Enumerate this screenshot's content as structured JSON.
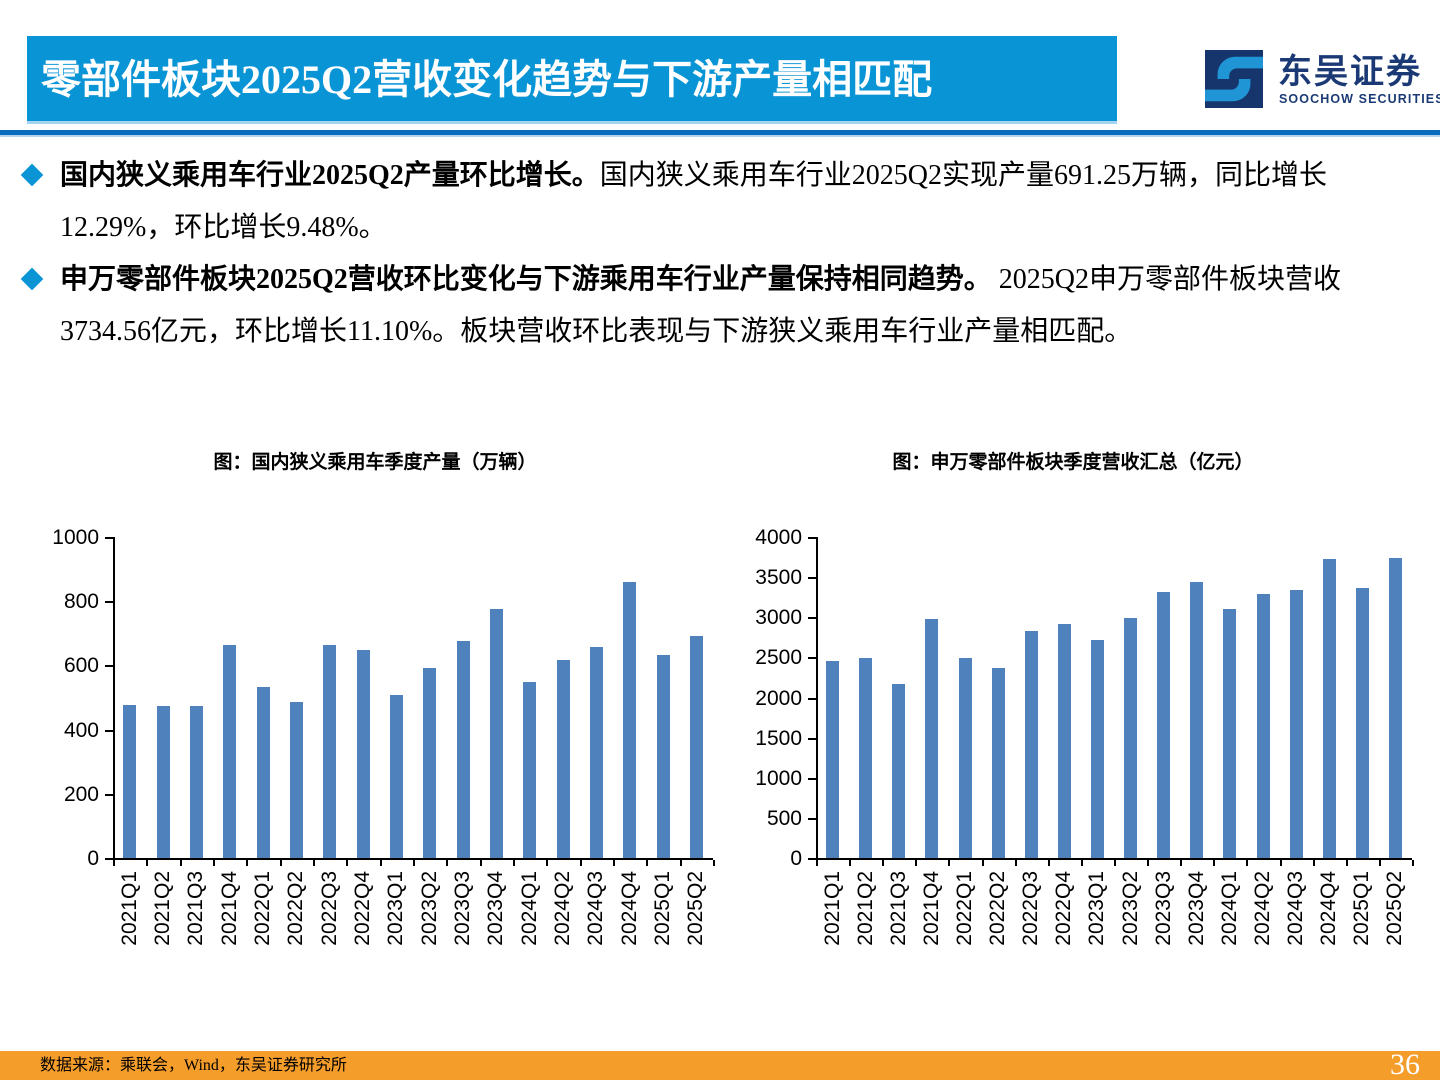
{
  "header": {
    "title": "零部件板块2025Q2营收变化趋势与下游产量相匹配",
    "brand": {
      "cn": "东吴证券",
      "en": "SOOCHOW SECURITIES"
    }
  },
  "bullets": [
    {
      "lead": "国内狭义乘用车行业2025Q2产量环比增长。",
      "body": "国内狭义乘用车行业2025Q2实现产量691.25万辆，同比增长12.29%，环比增长9.48%。"
    },
    {
      "lead": "申万零部件板块2025Q2营收环比变化与下游乘用车行业产量保持相同趋势。",
      "body": " 2025Q2申万零部件板块营收3734.56亿元，环比增长11.10%。板块营收环比表现与下游狭义乘用车行业产量相匹配。"
    }
  ],
  "chart_data": [
    {
      "type": "bar",
      "title": "图：国内狭义乘用车季度产量（万辆）",
      "categories": [
        "2021Q1",
        "2021Q2",
        "2021Q3",
        "2021Q4",
        "2022Q1",
        "2022Q2",
        "2022Q3",
        "2022Q4",
        "2023Q1",
        "2023Q2",
        "2023Q3",
        "2023Q4",
        "2024Q1",
        "2024Q2",
        "2024Q3",
        "2024Q4",
        "2025Q1",
        "2025Q2"
      ],
      "values": [
        478,
        472,
        472,
        665,
        534,
        486,
        664,
        649,
        508,
        591,
        677,
        777,
        549,
        616,
        656,
        860,
        631,
        691
      ],
      "xlabel": "",
      "ylabel": "",
      "ylim": [
        0,
        1000
      ],
      "ytick_step": 200,
      "grid": false,
      "legend": "none",
      "bar_color": "#4f81bd"
    },
    {
      "type": "bar",
      "title": "图：申万零部件板块季度营收汇总（亿元）",
      "categories": [
        "2021Q1",
        "2021Q2",
        "2021Q3",
        "2021Q4",
        "2022Q1",
        "2022Q2",
        "2022Q3",
        "2022Q4",
        "2023Q1",
        "2023Q2",
        "2023Q3",
        "2023Q4",
        "2024Q1",
        "2024Q2",
        "2024Q3",
        "2024Q4",
        "2025Q1",
        "2025Q2"
      ],
      "values": [
        2453,
        2496,
        2164,
        2980,
        2489,
        2372,
        2823,
        2916,
        2717,
        2996,
        3318,
        3442,
        3103,
        3290,
        3341,
        3728,
        3361,
        3735
      ],
      "xlabel": "",
      "ylabel": "",
      "ylim": [
        0,
        4000
      ],
      "ytick_step": 500,
      "grid": false,
      "legend": "none",
      "bar_color": "#4f81bd"
    }
  ],
  "footer": {
    "source": "数据来源：乘联会，Wind，东吴证券研究所",
    "page": "36"
  },
  "colors": {
    "banner_blue": "#0994d6",
    "divider_blue": "#0b6cbe",
    "divider_light": "#b7d3eb",
    "bullet_diamond": "#0994d6",
    "bar_blue": "#4f81bd",
    "footer_orange": "#f59d2b",
    "brand_navy": "#1b3a75",
    "logo_lightblue": "#2095d5"
  }
}
